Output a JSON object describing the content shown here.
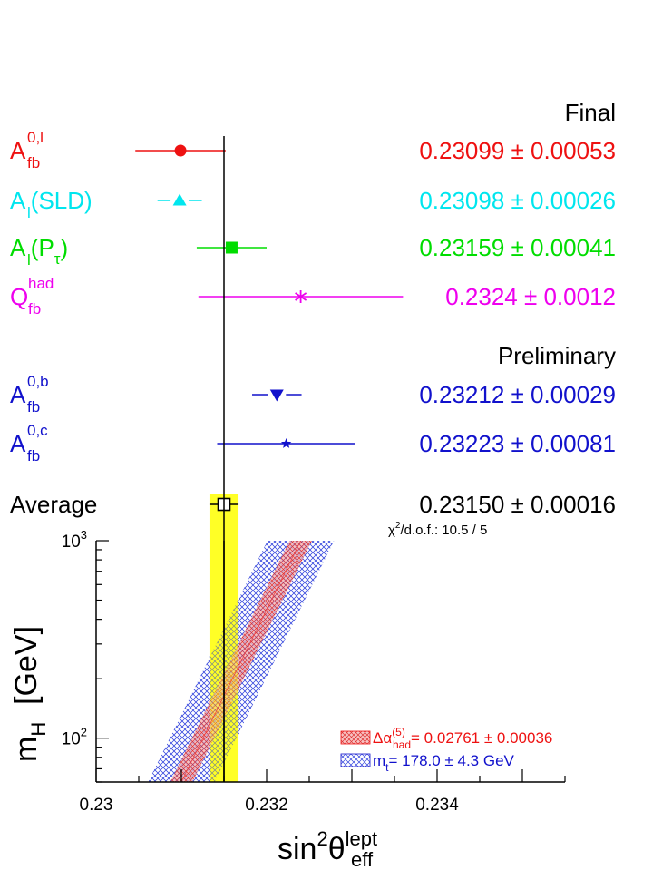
{
  "headers": {
    "final": "Final",
    "preliminary": "Preliminary"
  },
  "chi2": {
    "symbol": "χ",
    "power": "2",
    "label": "/d.o.f.: 10.5 / 5"
  },
  "colors": {
    "red": "#ee1111",
    "cyan": "#00e6ee",
    "green": "#00dd00",
    "magenta": "#ee00ee",
    "blue": "#1111cc",
    "black": "#000000",
    "yellow": "#ffff00",
    "band_red": "#f4a9a9",
    "band_blue": "#4455dd"
  },
  "chart_data": [
    {
      "type": "scatter",
      "description_axis": "sin2theta_eff_lept",
      "center_line": 0.2315,
      "measurements": [
        {
          "id": "afb0l",
          "group": "Final",
          "color_key": "red",
          "marker": "circle",
          "value": 0.23099,
          "error": 0.00053,
          "value_text": "0.23099",
          "pm": "±",
          "error_text": "0.00053",
          "label_main": "A",
          "label_sub": "fb",
          "label_sup": "0,l",
          "label_tail": ""
        },
        {
          "id": "alsld",
          "group": "Final",
          "color_key": "cyan",
          "marker": "triangle-up",
          "value": 0.23098,
          "error": 0.00026,
          "value_text": "0.23098",
          "pm": "±",
          "error_text": "0.00026",
          "label_main": "A",
          "label_sub": "l",
          "label_sup": "",
          "label_tail": "(SLD)"
        },
        {
          "id": "alptau",
          "group": "Final",
          "color_key": "green",
          "marker": "square",
          "value": 0.23159,
          "error": 0.00041,
          "value_text": "0.23159",
          "pm": "±",
          "error_text": "0.00041",
          "label_main": "A",
          "label_sub": "l",
          "label_sup": "",
          "label_tail": "(P",
          "label_tail_sub": "τ",
          "label_tail_end": ")"
        },
        {
          "id": "qfbhad",
          "group": "Final",
          "color_key": "magenta",
          "marker": "asterisk",
          "value": 0.2324,
          "error": 0.0012,
          "value_text": "0.2324",
          "pm": "±",
          "error_text": "0.0012",
          "label_main": "Q",
          "label_sub": "fb",
          "label_sup": "had",
          "label_tail": ""
        },
        {
          "id": "afb0b",
          "group": "Preliminary",
          "color_key": "blue",
          "marker": "triangle-down",
          "value": 0.23212,
          "error": 0.00029,
          "value_text": "0.23212",
          "pm": "±",
          "error_text": "0.00029",
          "label_main": "A",
          "label_sub": "fb",
          "label_sup": "0,b",
          "label_tail": ""
        },
        {
          "id": "afb0c",
          "group": "Preliminary",
          "color_key": "blue",
          "marker": "star",
          "value": 0.23223,
          "error": 0.00081,
          "value_text": "0.23223",
          "pm": "±",
          "error_text": "0.00081",
          "label_main": "A",
          "label_sub": "fb",
          "label_sup": "0,c",
          "label_tail": ""
        },
        {
          "id": "average",
          "group": "Average",
          "color_key": "black",
          "marker": "open-square",
          "value": 0.2315,
          "error": 0.00016,
          "value_text": "0.23150",
          "pm": "±",
          "error_text": "0.00016",
          "label_main": "Average",
          "label_sub": "",
          "label_sup": "",
          "label_tail": ""
        }
      ]
    },
    {
      "type": "area",
      "xlim": [
        0.23,
        0.2355
      ],
      "ylim": [
        60,
        1000
      ],
      "log_y": true,
      "x_ticks": [
        {
          "value": 0.23,
          "label": "0.23"
        },
        {
          "value": 0.232,
          "label": "0.232"
        },
        {
          "value": 0.234,
          "label": "0.234"
        }
      ],
      "y_ticks": [
        {
          "value": 100,
          "base": "10",
          "exp": "2"
        },
        {
          "value": 1000,
          "base": "10",
          "exp": "3"
        }
      ],
      "xlabel": {
        "main": "sin",
        "sup1": "2",
        "theta": "θ",
        "sup2": "lept",
        "sub": "eff"
      },
      "ylabel": {
        "main": "m",
        "sub": "H",
        "tail": "  [GeV]"
      },
      "average_band": [
        0.23134,
        0.23166
      ],
      "average_line": 0.2315,
      "bands": [
        {
          "name_main": "Δα",
          "name_sup": "(5)",
          "name_sub": "had",
          "value_text": "= 0.02761 ",
          "pm": "±",
          "error_text": " 0.00036",
          "color_key": "band_red",
          "text_color_key": "red",
          "center": [
            {
              "mH": 60,
              "x": 0.231
            },
            {
              "mH": 1000,
              "x": 0.2324
            }
          ],
          "half_width": 0.00013
        },
        {
          "name_main": "m",
          "name_sub": "t",
          "value_text": "= 178.0 ",
          "pm": "±",
          "error_text": " 4.3 GeV",
          "color_key": "band_blue",
          "text_color_key": "blue",
          "center": [
            {
              "mH": 60,
              "x": 0.231
            },
            {
              "mH": 1000,
              "x": 0.2324
            }
          ],
          "half_width": 0.00039
        }
      ]
    }
  ]
}
